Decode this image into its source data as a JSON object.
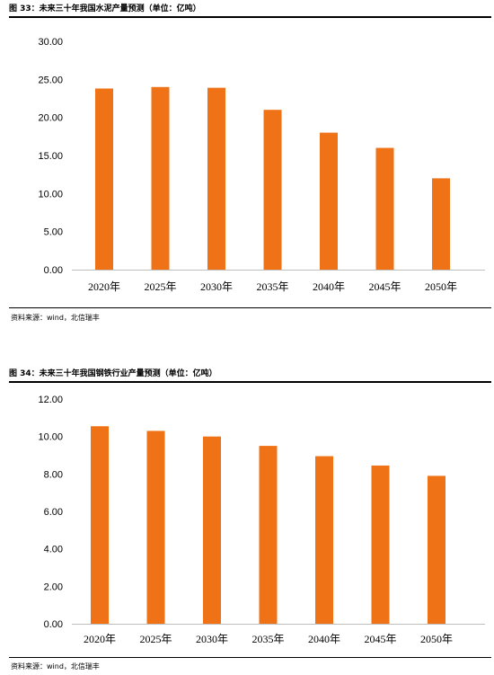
{
  "figures": [
    {
      "title": "图 33：未来三十年我国水泥产量预测（单位：亿吨）",
      "source": "资料来源：wind，北信瑞丰"
    },
    {
      "title": "图 34：未来三十年我国钢铁行业产量预测（单位：亿吨）",
      "source": "资料来源：wind，北信瑞丰"
    }
  ],
  "chart_data": [
    {
      "type": "bar",
      "title": "",
      "xlabel": "",
      "ylabel": "",
      "categories": [
        "2020年",
        "2025年",
        "2030年",
        "2035年",
        "2040年",
        "2045年",
        "2050年"
      ],
      "values": [
        23.8,
        24.0,
        23.9,
        21.0,
        18.0,
        16.0,
        12.0
      ],
      "ylim": [
        0,
        30
      ],
      "yticks": [
        "0.00",
        "5.00",
        "10.00",
        "15.00",
        "20.00",
        "25.00",
        "30.00"
      ],
      "grid": false,
      "legend": "none",
      "bar_color": "#F07216"
    },
    {
      "type": "bar",
      "title": "",
      "xlabel": "",
      "ylabel": "",
      "categories": [
        "2020年",
        "2025年",
        "2030年",
        "2035年",
        "2040年",
        "2045年",
        "2050年"
      ],
      "values": [
        10.55,
        10.3,
        10.0,
        9.5,
        8.95,
        8.45,
        7.9
      ],
      "ylim": [
        0,
        12
      ],
      "yticks": [
        "0.00",
        "2.00",
        "4.00",
        "6.00",
        "8.00",
        "10.00",
        "12.00"
      ],
      "grid": false,
      "legend": "none",
      "bar_color": "#F07216"
    }
  ]
}
